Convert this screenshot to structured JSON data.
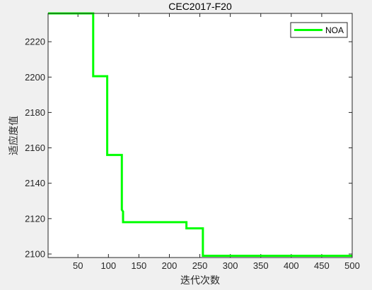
{
  "chart_data": {
    "type": "line",
    "title": "CEC2017-F20",
    "xlabel": "迭代次数",
    "ylabel": "适应度值",
    "xlim": [
      1,
      500
    ],
    "ylim": [
      2098,
      2236
    ],
    "xticks": [
      50,
      100,
      150,
      200,
      250,
      300,
      350,
      400,
      450,
      500
    ],
    "yticks": [
      2100,
      2120,
      2140,
      2160,
      2180,
      2200,
      2220
    ],
    "grid": false,
    "legend_position": "top-right",
    "series": [
      {
        "name": "NOA",
        "color": "#00ff00",
        "x": [
          1,
          75,
          75,
          98,
          98,
          122,
          122,
          124,
          124,
          126,
          126,
          228,
          228,
          255,
          255,
          500
        ],
        "y": [
          2236,
          2236,
          2200.5,
          2200.5,
          2156,
          2156,
          2125,
          2124,
          2118,
          2118,
          2118,
          2118,
          2114.5,
          2114.5,
          2099,
          2099
        ]
      }
    ]
  }
}
